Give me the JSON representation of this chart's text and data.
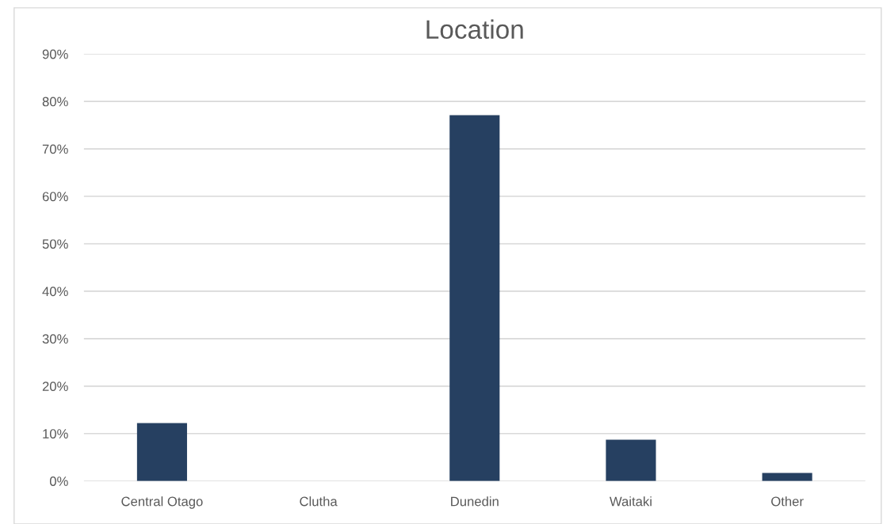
{
  "chart_data": {
    "type": "bar",
    "title": "Location",
    "categories": [
      "Central Otago",
      "Clutha",
      "Dunedin",
      "Waitaki",
      "Other"
    ],
    "values": [
      12.2,
      0,
      77.1,
      8.7,
      1.7
    ],
    "color": "#264061",
    "ylim": [
      0,
      90
    ],
    "yticks": [
      {
        "value": 0,
        "label": "0%"
      },
      {
        "value": 10,
        "label": "10%"
      },
      {
        "value": 20,
        "label": "20%"
      },
      {
        "value": 30,
        "label": "30%"
      },
      {
        "value": 40,
        "label": "40%"
      },
      {
        "value": 50,
        "label": "50%"
      },
      {
        "value": 60,
        "label": "60%"
      },
      {
        "value": 70,
        "label": "70%"
      },
      {
        "value": 80,
        "label": "80%"
      },
      {
        "value": 90,
        "label": "90%"
      }
    ],
    "grid": "y",
    "legend": false
  }
}
